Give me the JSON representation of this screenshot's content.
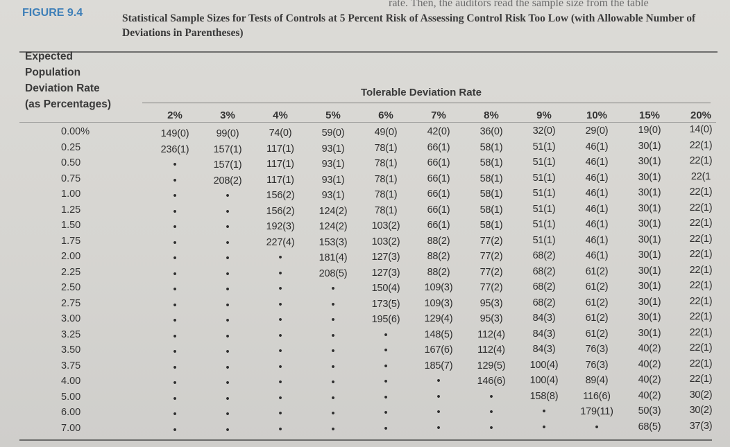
{
  "header": {
    "top_fragment": "rate. Then, the auditors read the sample size from the table",
    "figure_label": "FIGURE 9.4",
    "title": "Statistical Sample Sizes for Tests of Controls at 5 Percent Risk of Assessing Control Risk Too Low (with Allowable Number of Deviations in Parentheses)"
  },
  "table": {
    "row_header_lines": [
      "Expected",
      "Population",
      "Deviation Rate",
      "(as Percentages)"
    ],
    "group_header": "Tolerable Deviation Rate",
    "columns": [
      "2%",
      "3%",
      "4%",
      "5%",
      "6%",
      "7%",
      "8%",
      "9%",
      "10%",
      "15%",
      "20%"
    ],
    "rows": [
      {
        "rate": "0.00%",
        "cells": [
          "149(0)",
          "99(0)",
          "74(0)",
          "59(0)",
          "49(0)",
          "42(0)",
          "36(0)",
          "32(0)",
          "29(0)",
          "19(0)",
          "14(0)"
        ]
      },
      {
        "rate": "0.25",
        "cells": [
          "236(1)",
          "157(1)",
          "117(1)",
          "93(1)",
          "78(1)",
          "66(1)",
          "58(1)",
          "51(1)",
          "46(1)",
          "30(1)",
          "22(1)"
        ]
      },
      {
        "rate": "0.50",
        "cells": [
          "•",
          "157(1)",
          "117(1)",
          "93(1)",
          "78(1)",
          "66(1)",
          "58(1)",
          "51(1)",
          "46(1)",
          "30(1)",
          "22(1)"
        ]
      },
      {
        "rate": "0.75",
        "cells": [
          "•",
          "208(2)",
          "117(1)",
          "93(1)",
          "78(1)",
          "66(1)",
          "58(1)",
          "51(1)",
          "46(1)",
          "30(1)",
          "22(1"
        ]
      },
      {
        "rate": "1.00",
        "cells": [
          "•",
          "•",
          "156(2)",
          "93(1)",
          "78(1)",
          "66(1)",
          "58(1)",
          "51(1)",
          "46(1)",
          "30(1)",
          "22(1)"
        ]
      },
      {
        "rate": "1.25",
        "cells": [
          "•",
          "•",
          "156(2)",
          "124(2)",
          "78(1)",
          "66(1)",
          "58(1)",
          "51(1)",
          "46(1)",
          "30(1)",
          "22(1)"
        ]
      },
      {
        "rate": "1.50",
        "cells": [
          "•",
          "•",
          "192(3)",
          "124(2)",
          "103(2)",
          "66(1)",
          "58(1)",
          "51(1)",
          "46(1)",
          "30(1)",
          "22(1)"
        ]
      },
      {
        "rate": "1.75",
        "cells": [
          "•",
          "•",
          "227(4)",
          "153(3)",
          "103(2)",
          "88(2)",
          "77(2)",
          "51(1)",
          "46(1)",
          "30(1)",
          "22(1)"
        ]
      },
      {
        "rate": "2.00",
        "cells": [
          "•",
          "•",
          "•",
          "181(4)",
          "127(3)",
          "88(2)",
          "77(2)",
          "68(2)",
          "46(1)",
          "30(1)",
          "22(1)"
        ]
      },
      {
        "rate": "2.25",
        "cells": [
          "•",
          "•",
          "•",
          "208(5)",
          "127(3)",
          "88(2)",
          "77(2)",
          "68(2)",
          "61(2)",
          "30(1)",
          "22(1)"
        ]
      },
      {
        "rate": "2.50",
        "cells": [
          "•",
          "•",
          "•",
          "•",
          "150(4)",
          "109(3)",
          "77(2)",
          "68(2)",
          "61(2)",
          "30(1)",
          "22(1)"
        ]
      },
      {
        "rate": "2.75",
        "cells": [
          "•",
          "•",
          "•",
          "•",
          "173(5)",
          "109(3)",
          "95(3)",
          "68(2)",
          "61(2)",
          "30(1)",
          "22(1)"
        ]
      },
      {
        "rate": "3.00",
        "cells": [
          "•",
          "•",
          "•",
          "•",
          "195(6)",
          "129(4)",
          "95(3)",
          "84(3)",
          "61(2)",
          "30(1)",
          "22(1)"
        ]
      },
      {
        "rate": "3.25",
        "cells": [
          "•",
          "•",
          "•",
          "•",
          "•",
          "148(5)",
          "112(4)",
          "84(3)",
          "61(2)",
          "30(1)",
          "22(1)"
        ]
      },
      {
        "rate": "3.50",
        "cells": [
          "•",
          "•",
          "•",
          "•",
          "•",
          "167(6)",
          "112(4)",
          "84(3)",
          "76(3)",
          "40(2)",
          "22(1)"
        ]
      },
      {
        "rate": "3.75",
        "cells": [
          "•",
          "•",
          "•",
          "•",
          "•",
          "185(7)",
          "129(5)",
          "100(4)",
          "76(3)",
          "40(2)",
          "22(1)"
        ]
      },
      {
        "rate": "4.00",
        "cells": [
          "•",
          "•",
          "•",
          "•",
          "•",
          "•",
          "146(6)",
          "100(4)",
          "89(4)",
          "40(2)",
          "22(1)"
        ]
      },
      {
        "rate": "5.00",
        "cells": [
          "•",
          "•",
          "•",
          "•",
          "•",
          "•",
          "•",
          "158(8)",
          "116(6)",
          "40(2)",
          "30(2)"
        ]
      },
      {
        "rate": "6.00",
        "cells": [
          "•",
          "•",
          "•",
          "•",
          "•",
          "•",
          "•",
          "•",
          "179(11)",
          "50(3)",
          "30(2)"
        ]
      },
      {
        "rate": "7.00",
        "cells": [
          "•",
          "•",
          "•",
          "•",
          "•",
          "•",
          "•",
          "•",
          "•",
          "68(5)",
          "37(3)"
        ]
      }
    ]
  }
}
